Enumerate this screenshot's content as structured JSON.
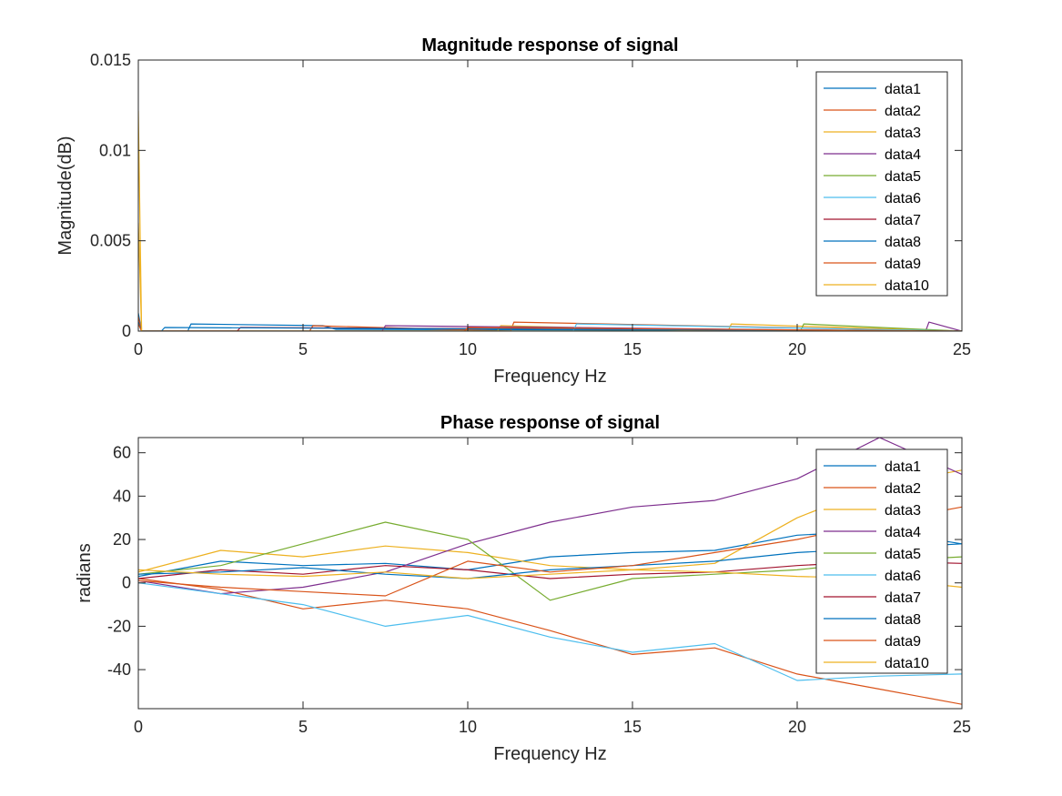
{
  "chart_data": [
    {
      "type": "line",
      "title": "Magnitude response of signal",
      "xlabel": "Frequency Hz",
      "ylabel": "Magnitude(dB)",
      "xlim": [
        0,
        25
      ],
      "ylim": [
        0,
        0.015
      ],
      "xticks": [
        0,
        5,
        10,
        15,
        20,
        25
      ],
      "yticks": [
        0,
        0.005,
        0.01,
        0.015
      ],
      "ytick_labels": [
        "0",
        "0.005",
        "0.01",
        "0.015"
      ],
      "grid": false,
      "legend_position": "top-right",
      "series": [
        {
          "name": "data1",
          "color": "#0072BD",
          "x": [
            0,
            0.1,
            1.5,
            1.6,
            5.6,
            6.0,
            25
          ],
          "values": [
            0.001,
            0,
            0,
            0.0004,
            0.0003,
            0.0001,
            0
          ]
        },
        {
          "name": "data2",
          "color": "#D95319",
          "x": [
            0,
            0.1,
            5.2,
            5.3,
            11.3,
            11.4,
            25
          ],
          "values": [
            0.0008,
            0,
            0,
            0.0003,
            0,
            0.0005,
            0
          ]
        },
        {
          "name": "data3",
          "color": "#EDB120",
          "x": [
            0,
            0.1,
            10.9,
            11.0,
            17.9,
            18.0,
            25
          ],
          "values": [
            0.006,
            0,
            0,
            0.0003,
            0,
            0.0004,
            0
          ]
        },
        {
          "name": "data4",
          "color": "#7E2F8E",
          "x": [
            0,
            0.1,
            7.4,
            7.5,
            23.9,
            24.0,
            25
          ],
          "values": [
            0.0005,
            0,
            0,
            0.0003,
            0,
            0.0005,
            0
          ]
        },
        {
          "name": "data5",
          "color": "#77AC30",
          "x": [
            0,
            0.1,
            20.1,
            20.2,
            25
          ],
          "values": [
            0.0005,
            0,
            0,
            0.0004,
            0
          ]
        },
        {
          "name": "data6",
          "color": "#4DBEEE",
          "x": [
            0,
            0.1,
            13.2,
            13.3,
            25
          ],
          "values": [
            0.0005,
            0,
            0,
            0.0004,
            0
          ]
        },
        {
          "name": "data7",
          "color": "#A2142F",
          "x": [
            0,
            0.1,
            3.0,
            3.1,
            25
          ],
          "values": [
            0.0005,
            0,
            0,
            0.0002,
            0
          ]
        },
        {
          "name": "data8",
          "color": "#0072BD",
          "x": [
            0,
            0.1,
            0.7,
            0.8,
            25
          ],
          "values": [
            0.0005,
            0,
            0,
            0.0002,
            0
          ]
        },
        {
          "name": "data9",
          "color": "#D95319",
          "x": [
            0,
            0.1,
            9.9,
            10.0,
            25
          ],
          "values": [
            0.0004,
            0,
            0,
            0.0002,
            0
          ]
        },
        {
          "name": "data10",
          "color": "#EDB120",
          "x": [
            0,
            0.1,
            25
          ],
          "values": [
            0.0122,
            0,
            0
          ]
        }
      ]
    },
    {
      "type": "line",
      "title": "Phase response of signal",
      "xlabel": "Frequency Hz",
      "ylabel": "radians",
      "xlim": [
        0,
        25
      ],
      "ylim": [
        -58,
        67
      ],
      "xticks": [
        0,
        5,
        10,
        15,
        20,
        25
      ],
      "yticks": [
        -40,
        -20,
        0,
        20,
        40,
        60
      ],
      "ytick_labels": [
        "-40",
        "-20",
        "0",
        "20",
        "40",
        "60"
      ],
      "grid": false,
      "legend_position": "top-right",
      "series": [
        {
          "name": "data1",
          "color": "#0072BD",
          "x": [
            0,
            2.5,
            5,
            7.5,
            10,
            12.5,
            15,
            17.5,
            20,
            22.5,
            25
          ],
          "values": [
            3,
            10,
            8,
            9,
            6,
            12,
            14,
            15,
            22,
            24,
            18
          ]
        },
        {
          "name": "data2",
          "color": "#D95319",
          "x": [
            0,
            2.5,
            5,
            7.5,
            10,
            12.5,
            15,
            17.5,
            20,
            22.5,
            25
          ],
          "values": [
            2,
            -3,
            -12,
            -8,
            -12,
            -22,
            -33,
            -30,
            -42,
            -49,
            -56
          ]
        },
        {
          "name": "data3",
          "color": "#EDB120",
          "x": [
            0,
            2.5,
            5,
            7.5,
            10,
            12.5,
            15,
            17.5,
            20,
            22.5,
            25
          ],
          "values": [
            5,
            15,
            12,
            17,
            14,
            8,
            6,
            9,
            30,
            45,
            52
          ]
        },
        {
          "name": "data4",
          "color": "#7E2F8E",
          "x": [
            0,
            2.5,
            5,
            7.5,
            10,
            12.5,
            15,
            17.5,
            20,
            22.5,
            25
          ],
          "values": [
            1,
            -5,
            -2,
            5,
            18,
            28,
            35,
            38,
            48,
            67,
            50
          ]
        },
        {
          "name": "data5",
          "color": "#77AC30",
          "x": [
            0,
            2.5,
            5,
            7.5,
            10,
            12.5,
            15,
            17.5,
            20,
            22.5,
            25
          ],
          "values": [
            4,
            8,
            18,
            28,
            20,
            -8,
            2,
            4,
            6,
            10,
            12
          ]
        },
        {
          "name": "data6",
          "color": "#4DBEEE",
          "x": [
            0,
            2.5,
            5,
            7.5,
            10,
            12.5,
            15,
            17.5,
            20,
            22.5,
            25
          ],
          "values": [
            0,
            -5,
            -10,
            -20,
            -15,
            -25,
            -32,
            -28,
            -45,
            -43,
            -42
          ]
        },
        {
          "name": "data7",
          "color": "#A2142F",
          "x": [
            0,
            2.5,
            5,
            7.5,
            10,
            12.5,
            15,
            17.5,
            20,
            22.5,
            25
          ],
          "values": [
            2,
            6,
            4,
            8,
            6,
            2,
            4,
            5,
            8,
            10,
            9
          ]
        },
        {
          "name": "data8",
          "color": "#0072BD",
          "x": [
            0,
            2.5,
            5,
            7.5,
            10,
            12.5,
            15,
            17.5,
            20,
            22.5,
            25
          ],
          "values": [
            4,
            5,
            7,
            4,
            2,
            6,
            8,
            10,
            14,
            16,
            18
          ]
        },
        {
          "name": "data9",
          "color": "#D95319",
          "x": [
            0,
            2.5,
            5,
            7.5,
            10,
            12.5,
            15,
            17.5,
            20,
            22.5,
            25
          ],
          "values": [
            1,
            -2,
            -4,
            -6,
            10,
            5,
            8,
            14,
            20,
            28,
            35
          ]
        },
        {
          "name": "data10",
          "color": "#EDB120",
          "x": [
            0,
            2.5,
            5,
            7.5,
            10,
            12.5,
            15,
            17.5,
            20,
            22.5,
            25
          ],
          "values": [
            6,
            4,
            3,
            5,
            2,
            4,
            6,
            5,
            3,
            2,
            -2
          ]
        }
      ]
    }
  ]
}
